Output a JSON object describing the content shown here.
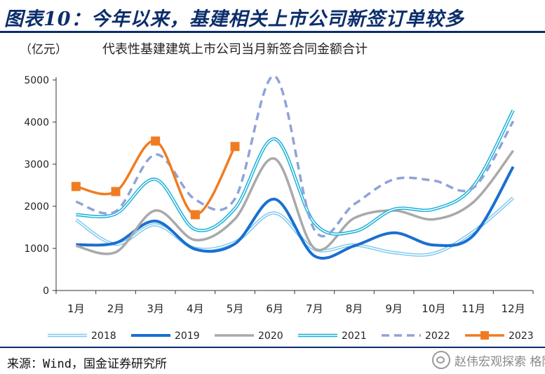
{
  "header": {
    "title": "图表10：今年以来，基建相关上市公司新签订单较多"
  },
  "footer": {
    "source": "来源：Wind，国金证券研究所",
    "watermark": "赵伟宏观探索 格隆汇"
  },
  "chart_data": {
    "type": "line",
    "title": "代表性基建建筑上市公司当月新签合同金额合计",
    "unit_label": "（亿元）",
    "categories": [
      "1月",
      "2月",
      "3月",
      "4月",
      "5月",
      "6月",
      "7月",
      "8月",
      "9月",
      "10月",
      "11月",
      "12月"
    ],
    "ylim": [
      0,
      5000
    ],
    "yticks": [
      0,
      1000,
      2000,
      3000,
      4000,
      5000
    ],
    "grid": false,
    "legend_position": "bottom",
    "series": [
      {
        "name": "2018",
        "style": "double",
        "color": "#7cc8ee",
        "values": [
          1680,
          1100,
          1560,
          1000,
          1150,
          1840,
          980,
          1080,
          900,
          880,
          1400,
          2200
        ]
      },
      {
        "name": "2019",
        "style": "solid-thick",
        "color": "#1a6fd1",
        "values": [
          1090,
          1130,
          1650,
          980,
          1110,
          2170,
          820,
          1060,
          1370,
          1080,
          1310,
          2940
        ]
      },
      {
        "name": "2020",
        "style": "solid",
        "color": "#a9a9a9",
        "values": [
          1060,
          910,
          1900,
          1200,
          1700,
          3130,
          1000,
          1720,
          1900,
          1690,
          2100,
          3320
        ]
      },
      {
        "name": "2021",
        "style": "double",
        "color": "#16aed7",
        "values": [
          1800,
          1820,
          2640,
          1450,
          1950,
          3600,
          1600,
          1400,
          1930,
          1930,
          2480,
          4280
        ]
      },
      {
        "name": "2022",
        "style": "dashed",
        "color": "#8fa3d8",
        "values": [
          2110,
          1880,
          3230,
          2160,
          2180,
          5090,
          1440,
          2050,
          2640,
          2610,
          2440,
          4020
        ]
      },
      {
        "name": "2023",
        "style": "marker",
        "color": "#f07c22",
        "values": [
          2470,
          2350,
          3550,
          1800,
          3420,
          null,
          null,
          null,
          null,
          null,
          null,
          null
        ]
      }
    ]
  }
}
